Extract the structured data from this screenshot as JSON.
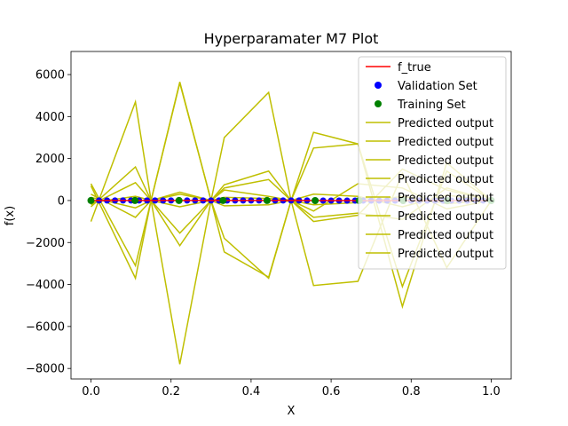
{
  "chart_data": {
    "type": "line",
    "title": "Hyperparamater M7 Plot",
    "xlabel": "X",
    "ylabel": "f(x)",
    "xlim": [
      -0.05,
      1.05
    ],
    "ylim": [
      -8500,
      7100
    ],
    "xticks": [
      0.0,
      0.2,
      0.4,
      0.6,
      0.8,
      1.0
    ],
    "xtick_labels": [
      "0.0",
      "0.2",
      "0.4",
      "0.6",
      "0.8",
      "1.0"
    ],
    "yticks": [
      -8000,
      -6000,
      -4000,
      -2000,
      0,
      2000,
      4000,
      6000
    ],
    "ytick_labels": [
      "−8000",
      "−6000",
      "−4000",
      "−2000",
      "0",
      "2000",
      "4000",
      "6000"
    ],
    "legend_position": "top-right",
    "legend": [
      {
        "label": "f_true",
        "kind": "line",
        "color": "#ff0000"
      },
      {
        "label": "Validation Set",
        "kind": "marker",
        "color": "#0000ff"
      },
      {
        "label": "Training Set",
        "kind": "marker",
        "color": "#008000"
      },
      {
        "label": "Predicted output",
        "kind": "line",
        "color": "#bfbf00"
      },
      {
        "label": "Predicted output",
        "kind": "line",
        "color": "#bfbf00"
      },
      {
        "label": "Predicted output",
        "kind": "line",
        "color": "#bfbf00"
      },
      {
        "label": "Predicted output",
        "kind": "line",
        "color": "#bfbf00"
      },
      {
        "label": "Predicted output",
        "kind": "line",
        "color": "#bfbf00"
      },
      {
        "label": "Predicted output",
        "kind": "line",
        "color": "#bfbf00"
      },
      {
        "label": "Predicted output",
        "kind": "line",
        "color": "#bfbf00"
      },
      {
        "label": "Predicted output",
        "kind": "line",
        "color": "#bfbf00"
      }
    ],
    "f_true": {
      "color": "#ff0000",
      "x": [
        0.0,
        0.1,
        0.2,
        0.3,
        0.4,
        0.5,
        0.6,
        0.7,
        0.8,
        0.9,
        1.0
      ],
      "y": [
        0,
        0.6,
        1.0,
        0.95,
        0.6,
        0,
        -0.6,
        -0.95,
        -0.95,
        -0.6,
        0
      ]
    },
    "validation_set": {
      "color": "#0000ff",
      "x": [
        0.0,
        0.02,
        0.04,
        0.06,
        0.08,
        0.1,
        0.12,
        0.14,
        0.16,
        0.18,
        0.2,
        0.22,
        0.24,
        0.26,
        0.28,
        0.3,
        0.32,
        0.34,
        0.36,
        0.38,
        0.4,
        0.42,
        0.44,
        0.46,
        0.48,
        0.5,
        0.52,
        0.54,
        0.56,
        0.58,
        0.6,
        0.62,
        0.64,
        0.66,
        0.68,
        0.7,
        0.72,
        0.74,
        0.76,
        0.78,
        0.8,
        0.82,
        0.84,
        0.86,
        0.88,
        0.9,
        0.92,
        0.94,
        0.96,
        0.98,
        1.0
      ],
      "y": [
        0,
        0.12,
        0.25,
        0.37,
        0.48,
        0.59,
        0.68,
        0.77,
        0.84,
        0.9,
        0.95,
        0.98,
        1.0,
        1.0,
        0.98,
        0.95,
        0.9,
        0.84,
        0.77,
        0.68,
        0.59,
        0.48,
        0.37,
        0.25,
        0.12,
        0,
        -0.12,
        -0.25,
        -0.37,
        -0.48,
        -0.59,
        -0.68,
        -0.77,
        -0.84,
        -0.9,
        -0.95,
        -0.98,
        -1.0,
        -1.0,
        -0.98,
        -0.95,
        -0.9,
        -0.84,
        -0.77,
        -0.68,
        -0.59,
        -0.48,
        -0.37,
        -0.25,
        -0.12,
        0
      ]
    },
    "training_set": {
      "color": "#008000",
      "x": [
        0.0,
        0.11,
        0.22,
        0.33,
        0.44,
        0.56,
        0.67,
        0.78,
        0.89,
        1.0
      ],
      "y": [
        0,
        0.64,
        0.98,
        0.87,
        0.34,
        -0.34,
        -0.87,
        -0.98,
        -0.64,
        0
      ]
    },
    "predicted_color": "#bfbf00",
    "predicted_x": [
      0.0,
      0.111,
      0.15,
      0.222,
      0.3,
      0.333,
      0.444,
      0.5,
      0.556,
      0.667,
      0.778,
      0.889,
      1.0
    ],
    "series": [
      {
        "y": [
          800,
          -3100,
          0,
          5600,
          0,
          3000,
          5150,
          0,
          2500,
          2700,
          -5050,
          1800,
          0
        ]
      },
      {
        "y": [
          -1000,
          4700,
          0,
          -7800,
          0,
          -1800,
          -3700,
          0,
          3250,
          2700,
          -4100,
          1400,
          0
        ]
      },
      {
        "y": [
          700,
          -3700,
          0,
          5650,
          0,
          -2450,
          -3650,
          0,
          -4050,
          -3850,
          1300,
          -3200,
          0
        ]
      },
      {
        "y": [
          -300,
          1600,
          0,
          -2150,
          0,
          750,
          1400,
          0,
          -1000,
          -700,
          1500,
          500,
          0
        ]
      },
      {
        "y": [
          300,
          -800,
          0,
          400,
          0,
          600,
          1000,
          0,
          -800,
          -600,
          -900,
          600,
          0
        ]
      },
      {
        "y": [
          -200,
          850,
          0,
          -1550,
          0,
          500,
          200,
          0,
          -500,
          800,
          600,
          -400,
          0
        ]
      },
      {
        "y": [
          150,
          -350,
          0,
          300,
          0,
          -250,
          -200,
          0,
          300,
          200,
          -300,
          250,
          0
        ]
      },
      {
        "y": [
          -100,
          200,
          0,
          -300,
          0,
          150,
          100,
          0,
          -200,
          -100,
          200,
          -150,
          0
        ]
      }
    ]
  }
}
